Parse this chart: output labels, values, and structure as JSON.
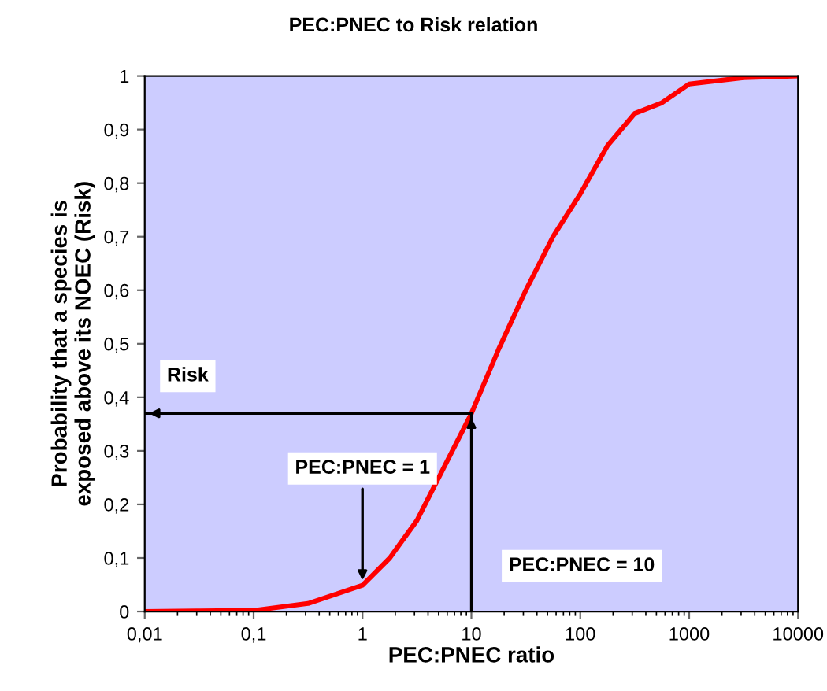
{
  "chart_data": {
    "type": "line",
    "title": "PEC:PNEC to Risk relation",
    "xlabel": "PEC:PNEC ratio",
    "ylabel": "Probability that a species is\nexposed above its NOEC (Risk)",
    "log": "x",
    "grid": false,
    "marker": "none",
    "line_style": "solid",
    "x": [
      0.01,
      0.03,
      0.1,
      0.316,
      1,
      1.78,
      3.16,
      5.62,
      10,
      17.8,
      31.6,
      56.2,
      100,
      178,
      316,
      562,
      1000,
      3160,
      10000
    ],
    "series": [
      {
        "color": "#ff0000",
        "values": [
          0,
          0.001,
          0.002,
          0.015,
          0.049,
          0.1,
          0.17,
          0.27,
          0.37,
          0.49,
          0.6,
          0.7,
          0.78,
          0.87,
          0.93,
          0.95,
          0.985,
          0.997,
          1
        ]
      }
    ],
    "xlim": [
      0.01,
      10000
    ],
    "ylim": [
      0,
      1
    ],
    "xticks": [
      {
        "value": 0.01,
        "label": "0,01"
      },
      {
        "value": 0.1,
        "label": "0,1"
      },
      1,
      10,
      100,
      1000,
      10000
    ],
    "yticks": [
      0,
      {
        "value": 0.1,
        "label": "0,1"
      },
      {
        "value": 0.2,
        "label": "0,2"
      },
      {
        "value": 0.3,
        "label": "0,3"
      },
      {
        "value": 0.4,
        "label": "0,4"
      },
      {
        "value": 0.5,
        "label": "0,5"
      },
      {
        "value": 0.6,
        "label": "0,6"
      },
      {
        "value": 0.7,
        "label": "0,7"
      },
      {
        "value": 0.8,
        "label": "0,8"
      },
      {
        "value": 0.9,
        "label": "0,9"
      },
      1
    ],
    "ref_lines": [
      {
        "axis": "y",
        "value": 0.37,
        "label": "Risk",
        "color": "#000000"
      },
      {
        "axis": "x",
        "value": 10,
        "label": "PEC:PNEC = 10",
        "color": "#000000"
      }
    ],
    "annotations": [
      {
        "text": "PEC:PNEC = 1",
        "x": 1,
        "y": 0.05
      }
    ]
  }
}
